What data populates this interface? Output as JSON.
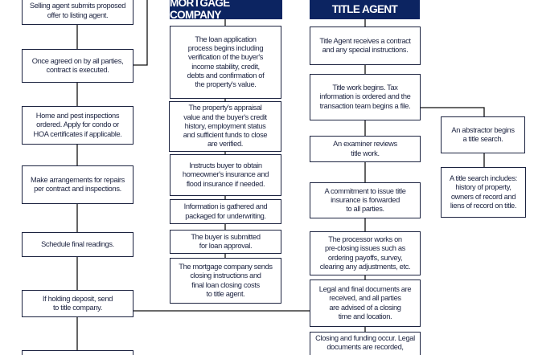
{
  "headers": {
    "mortgage": "MORTGAGE COMPANY",
    "title": "TITLE AGENT"
  },
  "colors": {
    "header_bg": "#0c2461",
    "text": "#1c2340",
    "line": "#111111"
  },
  "agent_steps": [
    "Selling agent submits proposed\noffer to listing agent.",
    "Once agreed on by all parties,\ncontract is executed.",
    "Home and pest inspections\nordered. Apply for condo or\nHOA certificates if applicable.",
    "Make arrangements for repairs\nper contract and inspections.",
    "Schedule final readings.",
    "If holding deposit, send\nto title company.",
    ""
  ],
  "mortgage_steps": [
    "The loan application\nprocess begins including\nverification of the buyer's\nincome stability, credit,\ndebts and confirmation of\nthe property's value.",
    "The property's appraisal\nvalue and the buyer's credit\nhistory, employment status\nand sufficient funds to close\nare verified.",
    "Instructs buyer to obtain\nhomeowner's insurance and\nflood insurance if needed.",
    "Information is gathered and\npackaged for underwriting.",
    "The buyer is submitted\nfor loan approval.",
    "The mortgage company sends\nclosing instructions and\nfinal loan closing costs\nto title agent."
  ],
  "title_steps": [
    "Title Agent receives a contract\nand any special instructions.",
    "Title work begins. Tax\ninformation is ordered and the\ntransaction team begins a file.",
    "An examiner reviews\ntitle work.",
    "A commitment to issue title\ninsurance is forwarded\nto all parties.",
    "The processor works on\npre-closing issues such as\nordering payoffs, survey,\nclearing any adjustments, etc.",
    "Legal and final documents are\nreceived, and all parties\nare advised of a closing\ntime and location.",
    "Closing and funding occur. Legal\ndocuments are recorded,"
  ],
  "search_steps": [
    "An abstractor begins\na title search.",
    "A title search includes:\nhistory of property,\nowners of record and\nliens of record on title."
  ]
}
